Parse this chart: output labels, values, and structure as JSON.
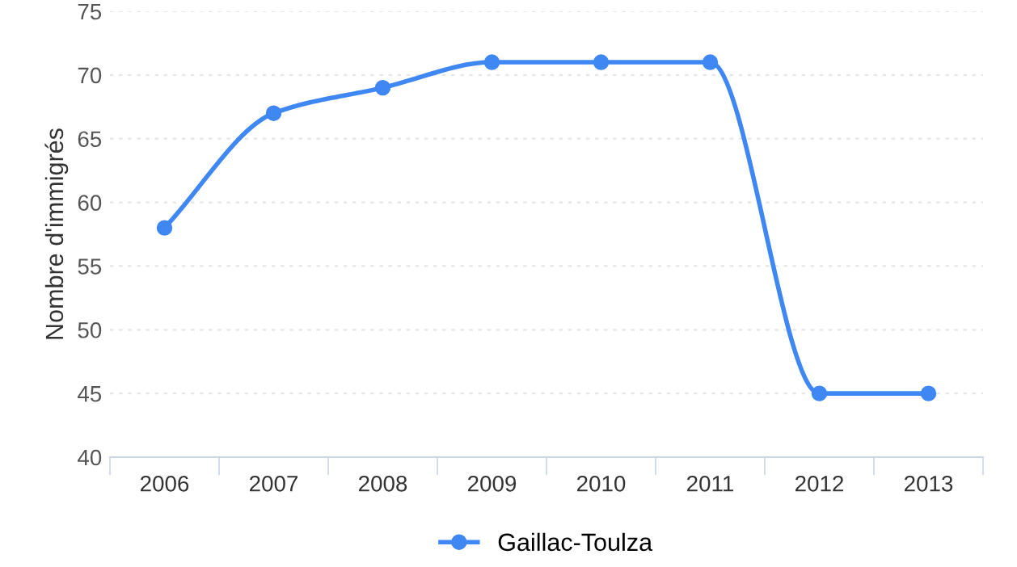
{
  "chart_data": {
    "type": "line",
    "ylabel": "Nombre d'immigrés",
    "categories": [
      "2006",
      "2007",
      "2008",
      "2009",
      "2010",
      "2011",
      "2012",
      "2013"
    ],
    "series": [
      {
        "name": "Gaillac-Toulza",
        "color": "#3f87f2",
        "values": [
          58,
          67,
          69,
          71,
          71,
          71,
          45,
          45
        ]
      }
    ],
    "ylim": [
      40,
      75
    ],
    "yticks": [
      40,
      45,
      50,
      55,
      60,
      65,
      70,
      75
    ],
    "grid": "y",
    "legend": "bottom",
    "marker": "circle",
    "line_style": "solid"
  }
}
